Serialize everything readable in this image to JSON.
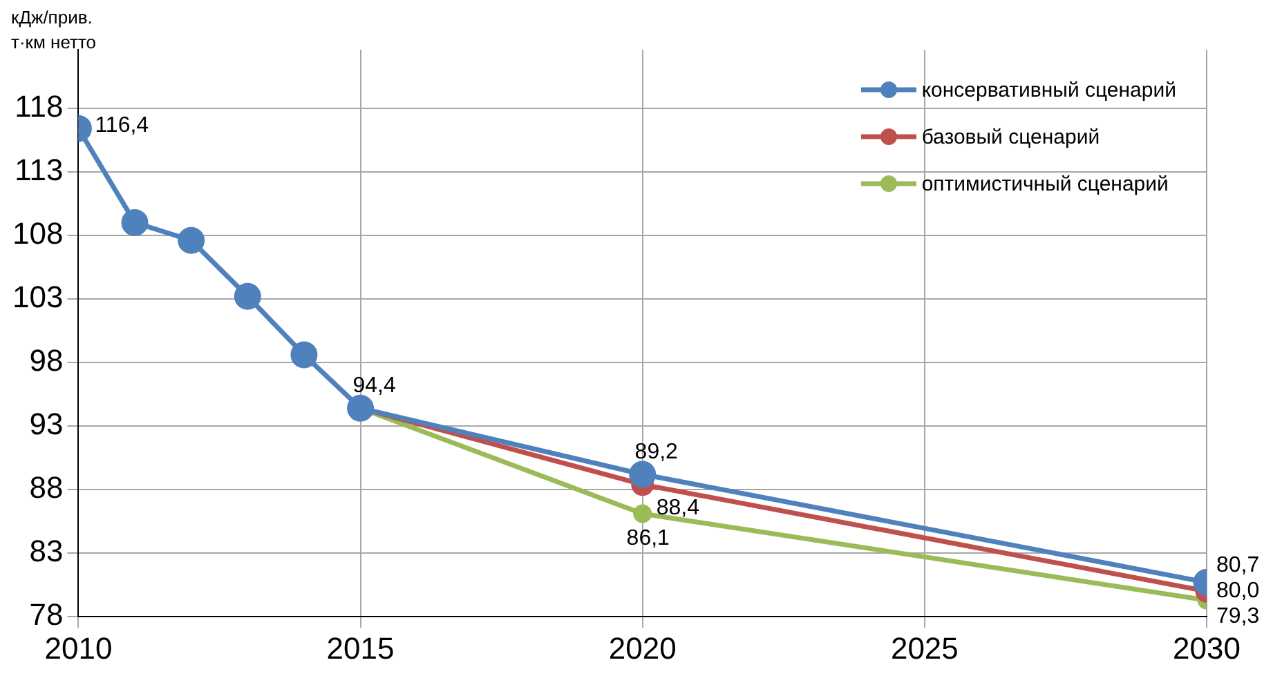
{
  "chart_data": {
    "type": "line",
    "ylabel": "кДж/прив. т·км нетто",
    "x": [
      2010,
      2011,
      2012,
      2013,
      2014,
      2015,
      2020,
      2030
    ],
    "xlim": [
      2010,
      2030
    ],
    "xticks": [
      2010,
      2015,
      2020,
      2025,
      2030
    ],
    "ylim": [
      78,
      122.6
    ],
    "yticks": [
      78,
      83,
      88,
      93,
      98,
      103,
      108,
      113,
      118
    ],
    "grid": true,
    "legend": "top right",
    "marker": "circle",
    "line_style": "solid",
    "series": [
      {
        "name": "консервативный сценарий",
        "color": "#4f81bd",
        "values": [
          116.4,
          109.0,
          107.6,
          103.2,
          98.6,
          94.4,
          89.2,
          80.7
        ],
        "value_labels": [
          "116,4",
          null,
          null,
          null,
          null,
          "94,4",
          "89,2",
          "80,7"
        ]
      },
      {
        "name": "базовый сценарий",
        "color": "#c0504d",
        "x": [
          2015,
          2020,
          2030
        ],
        "values": [
          94.4,
          88.4,
          80.0
        ],
        "value_labels": [
          null,
          "88,4",
          "80,0"
        ]
      },
      {
        "name": "оптимистичный сценарий",
        "color": "#9bbb59",
        "x": [
          2015,
          2020,
          2030
        ],
        "values": [
          94.4,
          86.1,
          79.3
        ],
        "value_labels": [
          null,
          "86,1",
          "79,3"
        ]
      }
    ]
  }
}
